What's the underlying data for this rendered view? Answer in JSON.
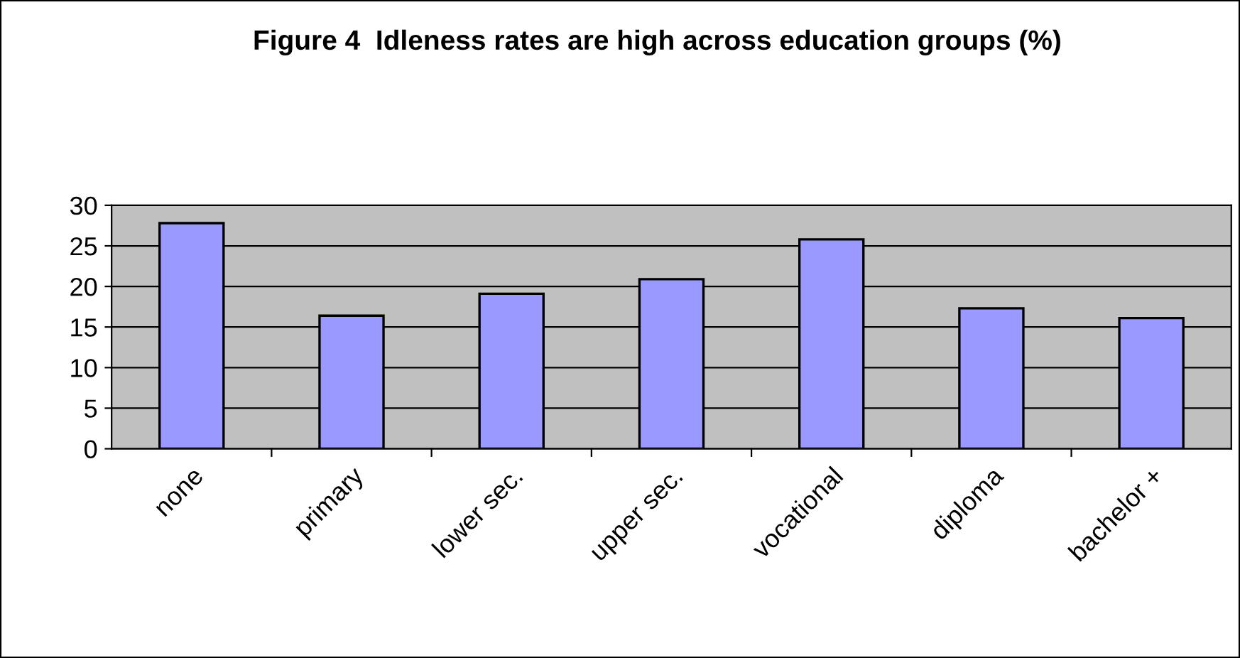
{
  "chart_data": {
    "type": "bar",
    "title": "Figure 4  Idleness rates are high across education groups (%)",
    "categories": [
      "none",
      "primary",
      "lower sec.",
      "upper sec.",
      "vocational",
      "diploma",
      "bachelor +"
    ],
    "values": [
      27.8,
      16.4,
      19.1,
      20.9,
      25.8,
      17.3,
      16.1
    ],
    "color": "#9999ff",
    "ylim": [
      0,
      30
    ],
    "yticks": [
      0,
      5,
      10,
      15,
      20,
      25,
      30
    ],
    "grid": "y"
  }
}
